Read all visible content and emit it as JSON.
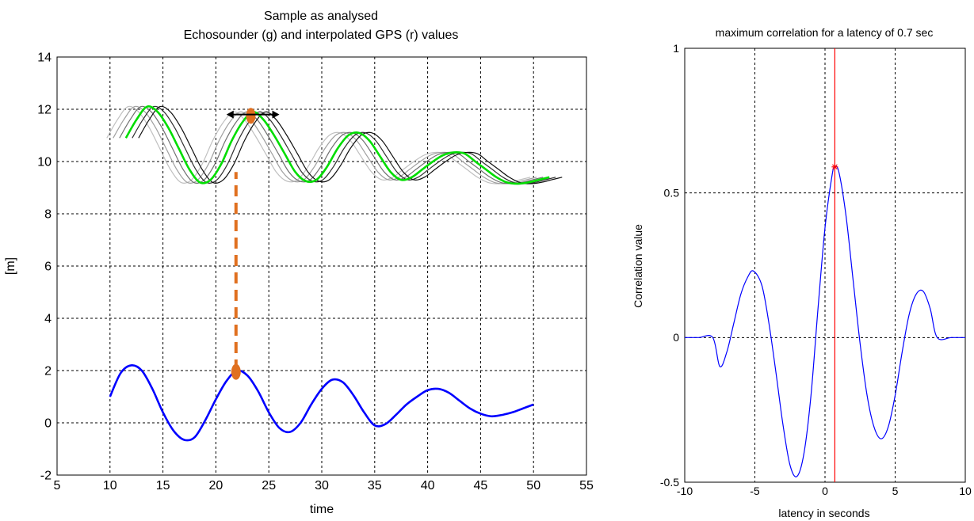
{
  "chart_data": [
    {
      "type": "line",
      "title": "Sample as analysed",
      "subtitle": "Echosounder (g) and interpolated GPS (r) values",
      "xlabel": "time",
      "ylabel": "[m]",
      "xlim": [
        5,
        55
      ],
      "ylim": [
        -2,
        14
      ],
      "xticks": [
        "5",
        "10",
        "15",
        "20",
        "25",
        "30",
        "35",
        "40",
        "45",
        "50",
        "55"
      ],
      "yticks": [
        "-2",
        "0",
        "2",
        "4",
        "6",
        "8",
        "10",
        "12",
        "14"
      ],
      "grid": true,
      "series": [
        {
          "color": "#0000ff",
          "x": [
            10,
            11,
            12,
            13,
            14,
            15,
            16,
            17,
            18,
            19,
            20,
            21,
            22,
            23,
            24,
            25,
            26,
            27,
            28,
            29,
            30,
            31,
            32,
            33,
            34,
            35,
            36,
            37,
            38,
            39,
            40,
            41,
            42,
            43,
            44,
            45,
            46,
            47,
            48,
            49,
            50
          ],
          "y": [
            1.0,
            1.9,
            2.2,
            2.0,
            1.3,
            0.4,
            -0.3,
            -0.65,
            -0.55,
            0.1,
            0.9,
            1.6,
            2.0,
            1.8,
            1.2,
            0.4,
            -0.2,
            -0.35,
            0.0,
            0.7,
            1.3,
            1.65,
            1.55,
            1.05,
            0.4,
            -0.1,
            -0.05,
            0.3,
            0.7,
            1.0,
            1.25,
            1.3,
            1.15,
            0.85,
            0.55,
            0.35,
            0.25,
            0.3,
            0.4,
            0.55,
            0.7
          ]
        },
        {
          "color": "#00dd00",
          "x": [
            11.5,
            12.5,
            13.5,
            14.5,
            15.5,
            16.5,
            17.5,
            18.5,
            19.5,
            20.5,
            21.5,
            22.5,
            23.5,
            24.5,
            25.5,
            26.5,
            27.5,
            28.5,
            29.5,
            30.5,
            31.5,
            32.5,
            33.5,
            34.5,
            35.5,
            36.5,
            37.5,
            38.5,
            39.5,
            40.5,
            41.5,
            42.5,
            43.5,
            44.5,
            45.5,
            46.5,
            47.5,
            48.5,
            49.5,
            50.5,
            51.5
          ],
          "y": [
            10.9,
            11.6,
            12.1,
            11.9,
            11.3,
            10.5,
            9.7,
            9.2,
            9.3,
            9.9,
            10.8,
            11.5,
            11.9,
            11.6,
            11.0,
            10.3,
            9.6,
            9.25,
            9.3,
            9.8,
            10.5,
            11.0,
            11.1,
            10.8,
            10.2,
            9.6,
            9.3,
            9.4,
            9.7,
            10.0,
            10.25,
            10.35,
            10.3,
            10.0,
            9.7,
            9.4,
            9.2,
            9.15,
            9.2,
            9.3,
            9.4
          ]
        },
        {
          "color": "#c0c0c0",
          "x": [
            9.7,
            10.7,
            11.7,
            12.7,
            13.7,
            14.7,
            15.7,
            16.7,
            17.7,
            18.7,
            19.7,
            20.7,
            21.7,
            22.7,
            23.7,
            24.7,
            25.7,
            26.7,
            27.7,
            28.7,
            29.7,
            30.7,
            31.7,
            32.7,
            33.7,
            34.7,
            35.7,
            36.7,
            37.7,
            38.7,
            39.7,
            40.7,
            41.7,
            42.7,
            43.7,
            44.7,
            45.7,
            46.7,
            47.7,
            48.7,
            49.7
          ],
          "y": [
            10.9,
            11.6,
            12.1,
            11.9,
            11.3,
            10.5,
            9.7,
            9.2,
            9.3,
            9.9,
            10.8,
            11.5,
            11.9,
            11.6,
            11.0,
            10.3,
            9.6,
            9.25,
            9.3,
            9.8,
            10.5,
            11.0,
            11.1,
            10.8,
            10.2,
            9.6,
            9.3,
            9.4,
            9.7,
            10.0,
            10.25,
            10.35,
            10.3,
            10.0,
            9.7,
            9.4,
            9.2,
            9.15,
            9.2,
            9.3,
            9.4
          ]
        },
        {
          "color": "#a0a0a0",
          "x": [
            10.3,
            11.3,
            12.3,
            13.3,
            14.3,
            15.3,
            16.3,
            17.3,
            18.3,
            19.3,
            20.3,
            21.3,
            22.3,
            23.3,
            24.3,
            25.3,
            26.3,
            27.3,
            28.3,
            29.3,
            30.3,
            31.3,
            32.3,
            33.3,
            34.3,
            35.3,
            36.3,
            37.3,
            38.3,
            39.3,
            40.3,
            41.3,
            42.3,
            43.3,
            44.3,
            45.3,
            46.3,
            47.3,
            48.3,
            49.3,
            50.3
          ],
          "y": [
            10.9,
            11.6,
            12.1,
            11.9,
            11.3,
            10.5,
            9.7,
            9.2,
            9.3,
            9.9,
            10.8,
            11.5,
            11.9,
            11.6,
            11.0,
            10.3,
            9.6,
            9.25,
            9.3,
            9.8,
            10.5,
            11.0,
            11.1,
            10.8,
            10.2,
            9.6,
            9.3,
            9.4,
            9.7,
            10.0,
            10.25,
            10.35,
            10.3,
            10.0,
            9.7,
            9.4,
            9.2,
            9.15,
            9.2,
            9.3,
            9.4
          ]
        },
        {
          "color": "#707070",
          "x": [
            10.9,
            11.9,
            12.9,
            13.9,
            14.9,
            15.9,
            16.9,
            17.9,
            18.9,
            19.9,
            20.9,
            21.9,
            22.9,
            23.9,
            24.9,
            25.9,
            26.9,
            27.9,
            28.9,
            29.9,
            30.9,
            31.9,
            32.9,
            33.9,
            34.9,
            35.9,
            36.9,
            37.9,
            38.9,
            39.9,
            40.9,
            41.9,
            42.9,
            43.9,
            44.9,
            45.9,
            46.9,
            47.9,
            48.9,
            49.9,
            50.9
          ],
          "y": [
            10.9,
            11.6,
            12.1,
            11.9,
            11.3,
            10.5,
            9.7,
            9.2,
            9.3,
            9.9,
            10.8,
            11.5,
            11.9,
            11.6,
            11.0,
            10.3,
            9.6,
            9.25,
            9.3,
            9.8,
            10.5,
            11.0,
            11.1,
            10.8,
            10.2,
            9.6,
            9.3,
            9.4,
            9.7,
            10.0,
            10.25,
            10.35,
            10.3,
            10.0,
            9.7,
            9.4,
            9.2,
            9.15,
            9.2,
            9.3,
            9.4
          ]
        },
        {
          "color": "#303030",
          "x": [
            12.1,
            13.1,
            14.1,
            15.1,
            16.1,
            17.1,
            18.1,
            19.1,
            20.1,
            21.1,
            22.1,
            23.1,
            24.1,
            25.1,
            26.1,
            27.1,
            28.1,
            29.1,
            30.1,
            31.1,
            32.1,
            33.1,
            34.1,
            35.1,
            36.1,
            37.1,
            38.1,
            39.1,
            40.1,
            41.1,
            42.1,
            43.1,
            44.1,
            45.1,
            46.1,
            47.1,
            48.1,
            49.1,
            50.1,
            51.1,
            52.1
          ],
          "y": [
            10.9,
            11.6,
            12.1,
            11.9,
            11.3,
            10.5,
            9.7,
            9.2,
            9.3,
            9.9,
            10.8,
            11.5,
            11.9,
            11.6,
            11.0,
            10.3,
            9.6,
            9.25,
            9.3,
            9.8,
            10.5,
            11.0,
            11.1,
            10.8,
            10.2,
            9.6,
            9.3,
            9.4,
            9.7,
            10.0,
            10.25,
            10.35,
            10.3,
            10.0,
            9.7,
            9.4,
            9.2,
            9.15,
            9.2,
            9.3,
            9.4
          ]
        },
        {
          "color": "#101010",
          "x": [
            12.7,
            13.7,
            14.7,
            15.7,
            16.7,
            17.7,
            18.7,
            19.7,
            20.7,
            21.7,
            22.7,
            23.7,
            24.7,
            25.7,
            26.7,
            27.7,
            28.7,
            29.7,
            30.7,
            31.7,
            32.7,
            33.7,
            34.7,
            35.7,
            36.7,
            37.7,
            38.7,
            39.7,
            40.7,
            41.7,
            42.7,
            43.7,
            44.7,
            45.7,
            46.7,
            47.7,
            48.7,
            49.7,
            50.7,
            51.7,
            52.7
          ],
          "y": [
            10.9,
            11.6,
            12.1,
            11.9,
            11.3,
            10.5,
            9.7,
            9.2,
            9.3,
            9.9,
            10.8,
            11.5,
            11.9,
            11.6,
            11.0,
            10.3,
            9.6,
            9.25,
            9.3,
            9.8,
            10.5,
            11.0,
            11.1,
            10.8,
            10.2,
            9.6,
            9.3,
            9.4,
            9.7,
            10.0,
            10.25,
            10.35,
            10.3,
            10.0,
            9.7,
            9.4,
            9.2,
            9.15,
            9.2,
            9.3,
            9.4
          ]
        }
      ],
      "annotations": {
        "color": "#e07020",
        "peak_point_top": [
          23.3,
          11.75
        ],
        "peak_point_bottom": [
          21.9,
          1.95
        ],
        "dashed_link_x": 21.9,
        "dashed_link_y": [
          2.0,
          9.6
        ],
        "shift_arrow_x": [
          21.0,
          26.0
        ],
        "shift_arrow_y": 11.8
      }
    },
    {
      "type": "line",
      "title": "maximum correlation for a latency of 0.7 sec",
      "xlabel": "latency in seconds",
      "ylabel": "Correlation value",
      "xlim": [
        -10,
        10
      ],
      "ylim": [
        -0.5,
        1
      ],
      "xticks": [
        "-10",
        "-5",
        "0",
        "5",
        "10"
      ],
      "yticks": [
        "-0.5",
        "0",
        "0.5",
        "1"
      ],
      "grid": true,
      "series": [
        {
          "color": "#0000ff",
          "x": [
            -10,
            -9,
            -8,
            -7.5,
            -7,
            -6.5,
            -6,
            -5.5,
            -5.1,
            -4.5,
            -4,
            -3.5,
            -3,
            -2.5,
            -2,
            -1.5,
            -1,
            -0.5,
            0,
            0.5,
            0.7,
            1,
            1.5,
            2,
            2.5,
            3,
            3.5,
            4,
            4.5,
            5,
            5.5,
            6,
            6.5,
            7,
            7.5,
            8,
            9,
            10
          ],
          "y": [
            0,
            0,
            0,
            -0.1,
            -0.05,
            0.05,
            0.15,
            0.21,
            0.23,
            0.18,
            0.05,
            -0.12,
            -0.3,
            -0.44,
            -0.48,
            -0.4,
            -0.2,
            0.1,
            0.38,
            0.56,
            0.59,
            0.57,
            0.42,
            0.2,
            -0.02,
            -0.2,
            -0.31,
            -0.35,
            -0.31,
            -0.2,
            -0.05,
            0.08,
            0.15,
            0.16,
            0.1,
            0,
            0,
            0
          ]
        }
      ],
      "max_marker": [
        0.7,
        0.59
      ],
      "max_line_x": 0.7,
      "max_color": "#ff0000"
    }
  ]
}
